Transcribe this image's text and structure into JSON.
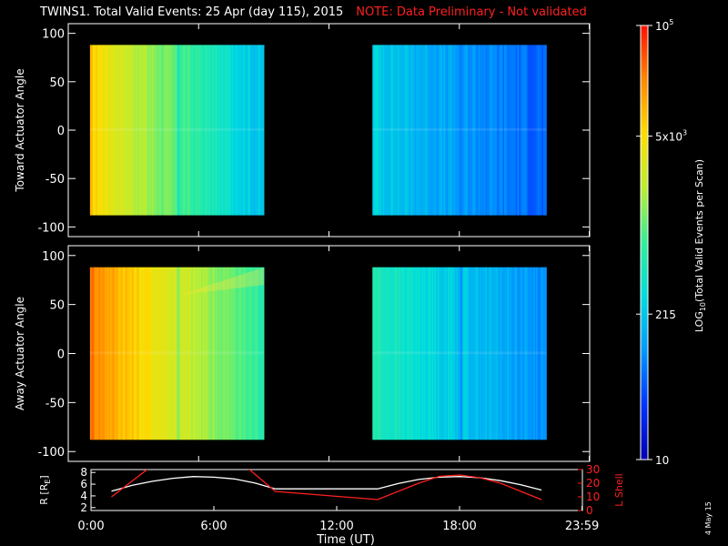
{
  "title": "TWINS1. Total Valid Events: 25 Apr (day 115), 2015",
  "note": "NOTE: Data Preliminary - Not validated",
  "stamp": "4 May 15",
  "chart_data": [
    {
      "type": "heatmap",
      "ylabel": "Toward Actuator Angle",
      "xlim": [
        0,
        24
      ],
      "ylim": [
        -110,
        110
      ],
      "yticks": [
        100,
        50,
        0,
        -50,
        -100
      ],
      "grid": false,
      "blocks": [
        {
          "t_start": 1.0,
          "t_end": 9.0,
          "angle_range": [
            -88,
            88
          ],
          "level_start": 0.78,
          "level_end": 0.32
        },
        {
          "t_start": 14.0,
          "t_end": 22.0,
          "angle_range": [
            -88,
            88
          ],
          "level_start": 0.36,
          "level_end": 0.18
        }
      ]
    },
    {
      "type": "heatmap",
      "ylabel": "Away Actuator Angle",
      "xlim": [
        0,
        24
      ],
      "ylim": [
        -110,
        110
      ],
      "yticks": [
        100,
        50,
        0,
        -50,
        -100
      ],
      "grid": false,
      "blocks": [
        {
          "t_start": 1.0,
          "t_end": 9.0,
          "angle_range": [
            -88,
            88
          ],
          "level_start": 0.9,
          "level_end": 0.48
        },
        {
          "t_start": 14.0,
          "t_end": 22.0,
          "angle_range": [
            -88,
            88
          ],
          "level_start": 0.46,
          "level_end": 0.24
        }
      ]
    },
    {
      "type": "line",
      "ylabel_left": "R [R",
      "ylabel_left_sub": "E",
      "ylabel_right": "L Shell",
      "xlabel": "Time (UT)",
      "xlim": [
        0,
        24
      ],
      "xticks": [
        "0:00",
        "6:00",
        "12:00",
        "18:00",
        "23:59"
      ],
      "xtick_values": [
        0,
        6,
        12,
        18,
        23.98
      ],
      "ylim_left": [
        1.5,
        8.5
      ],
      "yticks_left": [
        8,
        6,
        4,
        2
      ],
      "ylim_right": [
        0,
        30
      ],
      "yticks_right": [
        30,
        20,
        10,
        0
      ],
      "series": [
        {
          "axis": "left",
          "color": "#ffffff",
          "x": [
            1,
            2,
            3,
            4,
            5,
            6,
            7,
            8,
            9,
            14,
            15,
            16,
            17,
            18,
            19,
            20,
            21,
            22
          ],
          "y": [
            4.8,
            5.8,
            6.5,
            7.0,
            7.3,
            7.2,
            6.9,
            6.2,
            5.2,
            5.2,
            6.1,
            6.8,
            7.2,
            7.3,
            7.1,
            6.6,
            5.9,
            5.0
          ]
        },
        {
          "axis": "right",
          "color": "#ff2020",
          "x": [
            1,
            3,
            7.5,
            9,
            14,
            16,
            17,
            18,
            19,
            20,
            22
          ],
          "y": [
            10,
            33,
            33,
            14,
            8,
            20,
            25,
            26,
            24,
            20,
            8
          ]
        }
      ]
    }
  ],
  "colorbar": {
    "label": "LOG",
    "label_sub": "10",
    "label_rest": "(Total Valid Events per Scan)",
    "ticks": [
      {
        "base": "10",
        "sup": "5",
        "pos": 1.0
      },
      {
        "base": "5x10",
        "sup": "3",
        "pos": 0.745
      },
      {
        "base": "215",
        "sup": "",
        "pos": 0.335
      },
      {
        "base": "10",
        "sup": "",
        "pos": 0.0
      }
    ],
    "colors": [
      "#0000b0",
      "#0033ff",
      "#0099ff",
      "#00dddd",
      "#33ee99",
      "#bbee33",
      "#ffdd00",
      "#ff8800",
      "#ff1100"
    ]
  }
}
